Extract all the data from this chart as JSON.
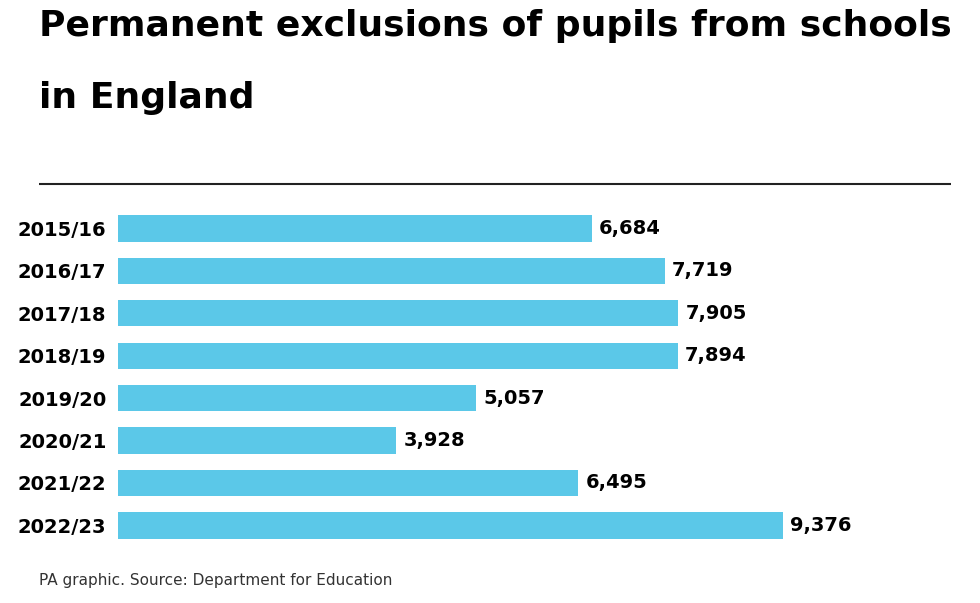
{
  "title_line1": "Permanent exclusions of pupils from schools",
  "title_line2": "in England",
  "categories": [
    "2015/16",
    "2016/17",
    "2017/18",
    "2018/19",
    "2019/20",
    "2020/21",
    "2021/22",
    "2022/23"
  ],
  "values": [
    6684,
    7719,
    7905,
    7894,
    5057,
    3928,
    6495,
    9376
  ],
  "labels": [
    "6,684",
    "7,719",
    "7,905",
    "7,894",
    "5,057",
    "3,928",
    "6,495",
    "9,376"
  ],
  "bar_color": "#5BC8E8",
  "background_color": "#ffffff",
  "title_color": "#000000",
  "label_color": "#000000",
  "ytick_color": "#000000",
  "source_text": "PA graphic. Source: Department for Education",
  "xlim": [
    0,
    10500
  ],
  "title_fontsize": 26,
  "bar_label_fontsize": 14,
  "ytick_fontsize": 14,
  "source_fontsize": 11
}
